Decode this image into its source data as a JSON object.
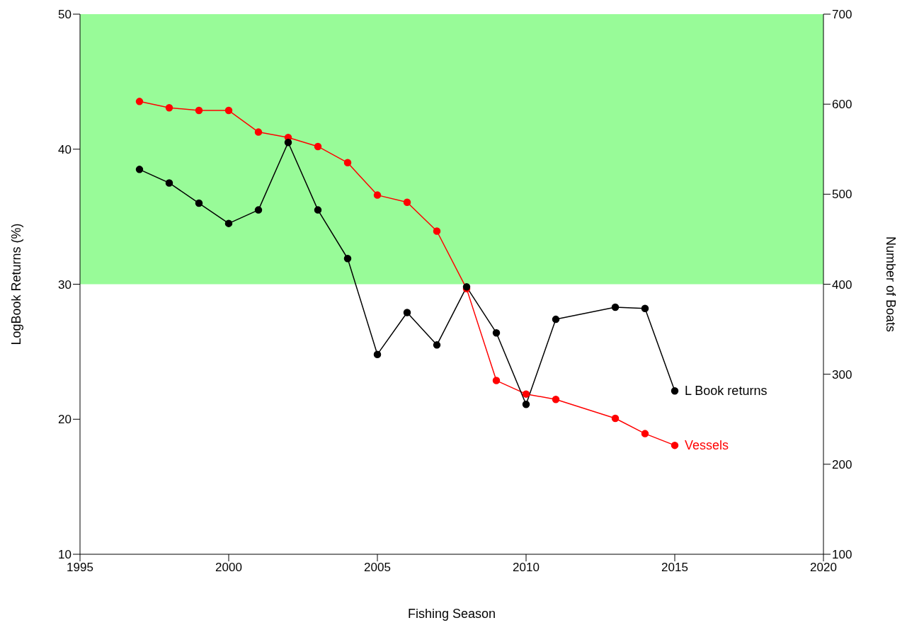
{
  "chart_data": {
    "type": "line",
    "xlabel": "Fishing Season",
    "ylabel": "LogBook Returns (%)",
    "y2label": "Number of Boats",
    "x": [
      1997,
      1998,
      1999,
      2000,
      2001,
      2002,
      2003,
      2004,
      2005,
      2006,
      2007,
      2008,
      2009,
      2010,
      2011,
      2013,
      2014,
      2015
    ],
    "series": [
      {
        "name": "L Book returns",
        "color": "#000000",
        "values": [
          38.5,
          37.5,
          36.0,
          34.5,
          35.5,
          40.5,
          35.5,
          31.9,
          24.8,
          27.9,
          25.5,
          29.8,
          26.4,
          21.1,
          27.4,
          28.3,
          28.2,
          22.1
        ]
      },
      {
        "name": "Vessels",
        "color": "#ff0000",
        "axis": "y2",
        "values": [
          603,
          596,
          593,
          593,
          569,
          563,
          553,
          535,
          499,
          491,
          459,
          395,
          293,
          278,
          272,
          251,
          234,
          221
        ]
      }
    ],
    "xlim": [
      1995,
      2020
    ],
    "xticks": [
      1995,
      2000,
      2005,
      2010,
      2015,
      2020
    ],
    "ylim": [
      10,
      50
    ],
    "yticks": [
      10,
      20,
      30,
      40,
      50
    ],
    "y2lim": [
      100,
      700
    ],
    "y2ticks": [
      100,
      200,
      300,
      400,
      500,
      600,
      700
    ],
    "bands": [
      {
        "axis": "y",
        "from": 30,
        "to": 50,
        "color": "#98fb98"
      }
    ],
    "marker": "circle",
    "line_style": "solid",
    "grid": false,
    "legend": false
  }
}
